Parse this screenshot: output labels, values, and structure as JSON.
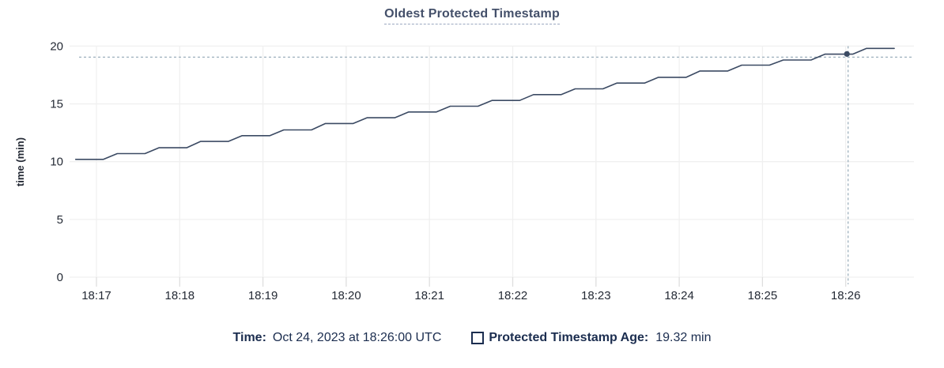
{
  "chart_data": {
    "type": "line",
    "title": "Oldest Protected Timestamp",
    "xlabel": "",
    "ylabel": "time (min)",
    "ylim": [
      0,
      20
    ],
    "y_ticks": [
      0,
      5,
      10,
      15,
      20
    ],
    "x_tick_labels": [
      "18:17",
      "18:18",
      "18:19",
      "18:20",
      "18:21",
      "18:22",
      "18:23",
      "18:24",
      "18:25",
      "18:26"
    ],
    "x_visible_range": [
      "18:16:41",
      "18:26:49"
    ],
    "grid": true,
    "legend_position": "bottom",
    "series": [
      {
        "name": "Protected Timestamp Age",
        "unit": "min",
        "style": "step-ramp",
        "step_hold_seconds": 20,
        "points": [
          {
            "time": "18:16:45",
            "value": 10.2
          },
          {
            "time": "18:17:15",
            "value": 10.7
          },
          {
            "time": "18:17:45",
            "value": 11.2
          },
          {
            "time": "18:18:15",
            "value": 11.75
          },
          {
            "time": "18:18:45",
            "value": 12.25
          },
          {
            "time": "18:19:15",
            "value": 12.75
          },
          {
            "time": "18:19:45",
            "value": 13.3
          },
          {
            "time": "18:20:15",
            "value": 13.8
          },
          {
            "time": "18:20:45",
            "value": 14.3
          },
          {
            "time": "18:21:15",
            "value": 14.8
          },
          {
            "time": "18:21:45",
            "value": 15.3
          },
          {
            "time": "18:22:15",
            "value": 15.8
          },
          {
            "time": "18:22:45",
            "value": 16.3
          },
          {
            "time": "18:23:15",
            "value": 16.8
          },
          {
            "time": "18:23:45",
            "value": 17.3
          },
          {
            "time": "18:24:15",
            "value": 17.85
          },
          {
            "time": "18:24:45",
            "value": 18.35
          },
          {
            "time": "18:25:15",
            "value": 18.8
          },
          {
            "time": "18:25:45",
            "value": 19.3
          },
          {
            "time": "18:26:15",
            "value": 19.8
          }
        ]
      }
    ],
    "highlight": {
      "time": "18:26:00",
      "value": 19.32
    }
  },
  "hover_legend": {
    "time_label": "Time:",
    "time_value": "Oct 24, 2023 at 18:26:00 UTC",
    "series_label": "Protected Timestamp Age:",
    "series_value": "19.32 min"
  },
  "colors": {
    "background": "#ffffff",
    "title": "#44506a",
    "title_underline": "#9aa8c0",
    "line": "#3b4a63",
    "axis_text": "#242a35",
    "grid": "#f0f0f0",
    "axis_tick": "#dedede",
    "crosshair": "#9db0bd",
    "legend_text": "#1b2d4f"
  }
}
